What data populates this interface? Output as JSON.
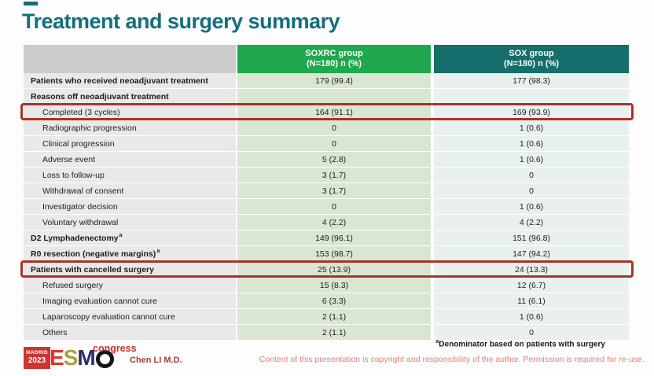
{
  "slide": {
    "title": "Treatment and surgery summary",
    "colors": {
      "title": "#136f7e",
      "header_label_bg": "#cbcbcb",
      "header_soxrc": "#1fa84e",
      "header_sox": "#156e6a",
      "label_col": "#e9e9e9",
      "soxrc_col": "#d9e6d2",
      "sox_col": "#e8f1f0",
      "highlight_border": "#a93228",
      "badge": "#cf3430",
      "congress": "#c4332b",
      "author": "#a0403c",
      "copyright": "#e2807c"
    }
  },
  "table": {
    "columns": [
      {
        "label": "",
        "sublabel": ""
      },
      {
        "label": "SOXRC group",
        "sublabel": "(N=180)  n (%)"
      },
      {
        "label": "SOX group",
        "sublabel": "(N=180)  n (%)"
      }
    ],
    "rows": [
      {
        "label": "Patients who received neoadjuvant treatment",
        "soxrc": "179 (99.4)",
        "sox": "177 (98.3)",
        "bold": true
      },
      {
        "label": "Reasons off neoadjuvant treatment",
        "soxrc": "",
        "sox": "",
        "bold": true
      },
      {
        "label": "Completed (3 cycles)",
        "soxrc": "164 (91.1)",
        "sox": "169 (93.9)",
        "indent": true,
        "highlight": true
      },
      {
        "label": "Radiographic progression",
        "soxrc": "0",
        "sox": "1 (0.6)",
        "indent": true
      },
      {
        "label": "Clinical progression",
        "soxrc": "0",
        "sox": "1 (0.6)",
        "indent": true
      },
      {
        "label": "Adverse event",
        "soxrc": "5 (2.8)",
        "sox": "1 (0.6)",
        "indent": true
      },
      {
        "label": "Loss to follow-up",
        "soxrc": "3 (1.7)",
        "sox": "0",
        "indent": true
      },
      {
        "label": "Withdrawal of consent",
        "soxrc": "3 (1.7)",
        "sox": "0",
        "indent": true
      },
      {
        "label": "Investigator decision",
        "soxrc": "0",
        "sox": "1 (0.6)",
        "indent": true
      },
      {
        "label": "Voluntary withdrawal",
        "soxrc": "4 (2.2)",
        "sox": "4 (2.2)",
        "indent": true
      },
      {
        "label": "D2 Lymphadenectomy",
        "superscript": "a",
        "soxrc": "149 (96.1)",
        "sox": "151 (96.8)",
        "bold": true
      },
      {
        "label": "R0 resection (negative margins)",
        "superscript": "a",
        "soxrc": "153 (98.7)",
        "sox": "147 (94.2)",
        "bold": true
      },
      {
        "label": "Patients with cancelled surgery",
        "soxrc": "25 (13.9)",
        "sox": "24 (13.3)",
        "bold": true,
        "highlight": true
      },
      {
        "label": "Refused surgery",
        "soxrc": "15 (8.3)",
        "sox": "12 (6.7)",
        "indent": true
      },
      {
        "label": "Imaging evaluation cannot cure",
        "soxrc": "6 (3.3)",
        "sox": "11 (6.1)",
        "indent": true
      },
      {
        "label": "Laparoscopy evaluation cannot cure",
        "soxrc": "2 (1.1)",
        "sox": "1 (0.6)",
        "indent": true
      },
      {
        "label": "Others",
        "soxrc": "2 (1.1)",
        "sox": "0",
        "indent": true
      }
    ]
  },
  "footer": {
    "footnote_superscript": "a",
    "footnote": "Denominator based on patients with surgery",
    "author": "Chen LI M.D.",
    "copyright": "Content of this presentation is copyright and responsibility of the author. Permission is required for re-use.",
    "logo": {
      "badge_line1": "MADRID",
      "badge_line2": "2023",
      "congress": "congress",
      "esmo_letters": [
        {
          "char": "E",
          "color": "#e2342b"
        },
        {
          "char": "S",
          "color": "#a9a23a"
        },
        {
          "char": "M",
          "color": "#28306b"
        },
        {
          "char": "O",
          "color": "#141414",
          "shape": "circle"
        }
      ]
    }
  }
}
